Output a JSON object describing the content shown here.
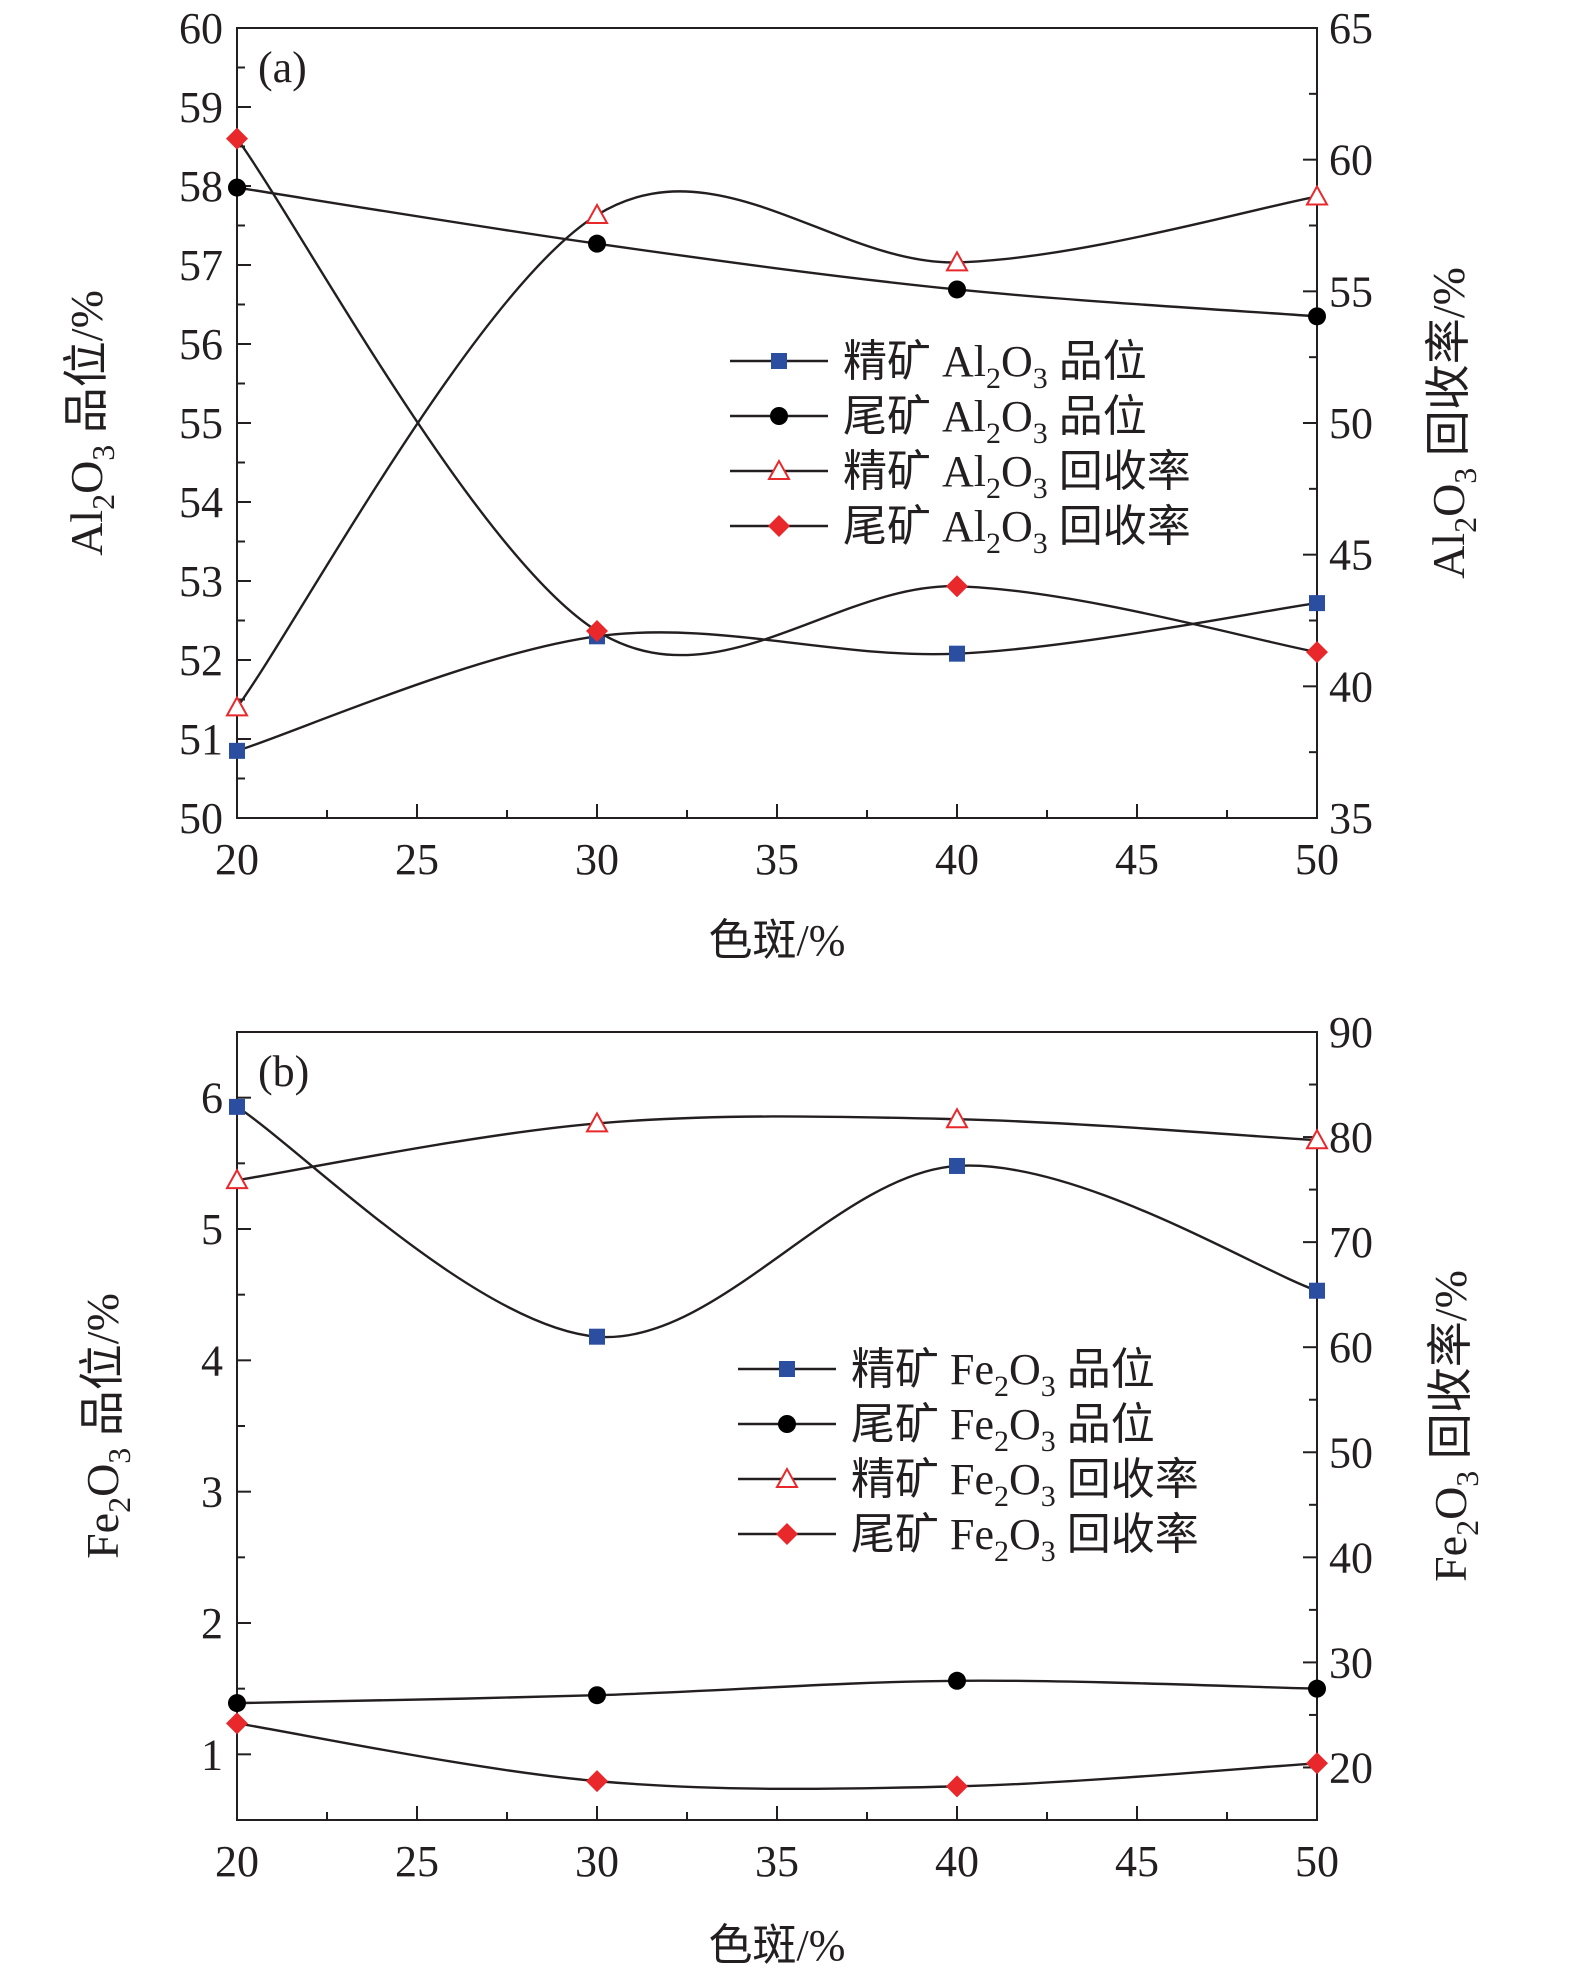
{
  "chart_data": [
    {
      "type": "line",
      "panel_label": "(a)",
      "xlabel": "色斑/%",
      "x": [
        20,
        30,
        40,
        50
      ],
      "xlim": [
        20,
        50
      ],
      "xticks": [
        "20",
        "25",
        "30",
        "35",
        "40",
        "45",
        "50"
      ],
      "ylabel_left": {
        "main": "Al",
        "sub1": "2",
        "mid": "O",
        "sub2": "3",
        "tail": " 品位/%"
      },
      "ylim_left": [
        50,
        60
      ],
      "yticks_left": [
        "50",
        "51",
        "52",
        "53",
        "54",
        "55",
        "56",
        "57",
        "58",
        "59",
        "60"
      ],
      "ylabel_right": {
        "main": "Al",
        "sub1": "2",
        "mid": "O",
        "sub2": "3",
        "tail": " 回收率/%"
      },
      "ylim_right": [
        35,
        65
      ],
      "yticks_right": [
        "35",
        "40",
        "45",
        "50",
        "55",
        "60",
        "65"
      ],
      "legend_position": "middle-right",
      "series": [
        {
          "name": {
            "pre": "精矿 Al",
            "sub1": "2",
            "mid": "O",
            "sub2": "3",
            "post": " 品位"
          },
          "axis": "left",
          "marker": "square",
          "color": "#2b4ea0",
          "values": [
            50.85,
            52.3,
            52.08,
            52.72
          ]
        },
        {
          "name": {
            "pre": "尾矿 Al",
            "sub1": "2",
            "mid": "O",
            "sub2": "3",
            "post": " 品位"
          },
          "axis": "left",
          "marker": "circle",
          "color": "#000000",
          "values": [
            57.98,
            57.27,
            56.69,
            56.35
          ]
        },
        {
          "name": {
            "pre": "精矿 Al",
            "sub1": "2",
            "mid": "O",
            "sub2": "3",
            "post": " 回收率"
          },
          "axis": "right",
          "marker": "triangle-open",
          "color": "#e8282b",
          "values": [
            39.2,
            57.9,
            56.1,
            58.6
          ]
        },
        {
          "name": {
            "pre": "尾矿 Al",
            "sub1": "2",
            "mid": "O",
            "sub2": "3",
            "post": " 回收率"
          },
          "axis": "right",
          "marker": "diamond",
          "color": "#e8282b",
          "values": [
            60.8,
            42.1,
            43.8,
            41.3
          ]
        }
      ]
    },
    {
      "type": "line",
      "panel_label": "(b)",
      "xlabel": "色斑/%",
      "x": [
        20,
        30,
        40,
        50
      ],
      "xlim": [
        20,
        50
      ],
      "xticks": [
        "20",
        "25",
        "30",
        "35",
        "40",
        "45",
        "50"
      ],
      "ylabel_left": {
        "main": "Fe",
        "sub1": "2",
        "mid": "O",
        "sub2": "3",
        "tail": " 品位/%"
      },
      "ylim_left": [
        0.5,
        6.5
      ],
      "yticks_left": [
        "1",
        "2",
        "3",
        "4",
        "5",
        "6"
      ],
      "ylabel_right": {
        "main": "Fe",
        "sub1": "2",
        "mid": "O",
        "sub2": "3",
        "tail": " 回收率/%"
      },
      "ylim_right": [
        15,
        90
      ],
      "yticks_right": [
        "20",
        "30",
        "40",
        "50",
        "60",
        "70",
        "80",
        "90"
      ],
      "legend_position": "middle-right",
      "series": [
        {
          "name": {
            "pre": "精矿 Fe",
            "sub1": "2",
            "mid": "O",
            "sub2": "3",
            "post": " 品位"
          },
          "axis": "left",
          "marker": "square",
          "color": "#2b4ea0",
          "values": [
            5.93,
            4.18,
            5.48,
            4.53
          ]
        },
        {
          "name": {
            "pre": "尾矿 Fe",
            "sub1": "2",
            "mid": "O",
            "sub2": "3",
            "post": " 品位"
          },
          "axis": "left",
          "marker": "circle",
          "color": "#000000",
          "values": [
            1.39,
            1.45,
            1.56,
            1.5
          ]
        },
        {
          "name": {
            "pre": "精矿 Fe",
            "sub1": "2",
            "mid": "O",
            "sub2": "3",
            "post": " 回收率"
          },
          "axis": "right",
          "marker": "triangle-open",
          "color": "#e8282b",
          "values": [
            75.9,
            81.3,
            81.7,
            79.7
          ]
        },
        {
          "name": {
            "pre": "尾矿 Fe",
            "sub1": "2",
            "mid": "O",
            "sub2": "3",
            "post": " 回收率"
          },
          "axis": "right",
          "marker": "diamond",
          "color": "#e8282b",
          "values": [
            24.2,
            18.7,
            18.2,
            20.4
          ]
        }
      ]
    }
  ]
}
